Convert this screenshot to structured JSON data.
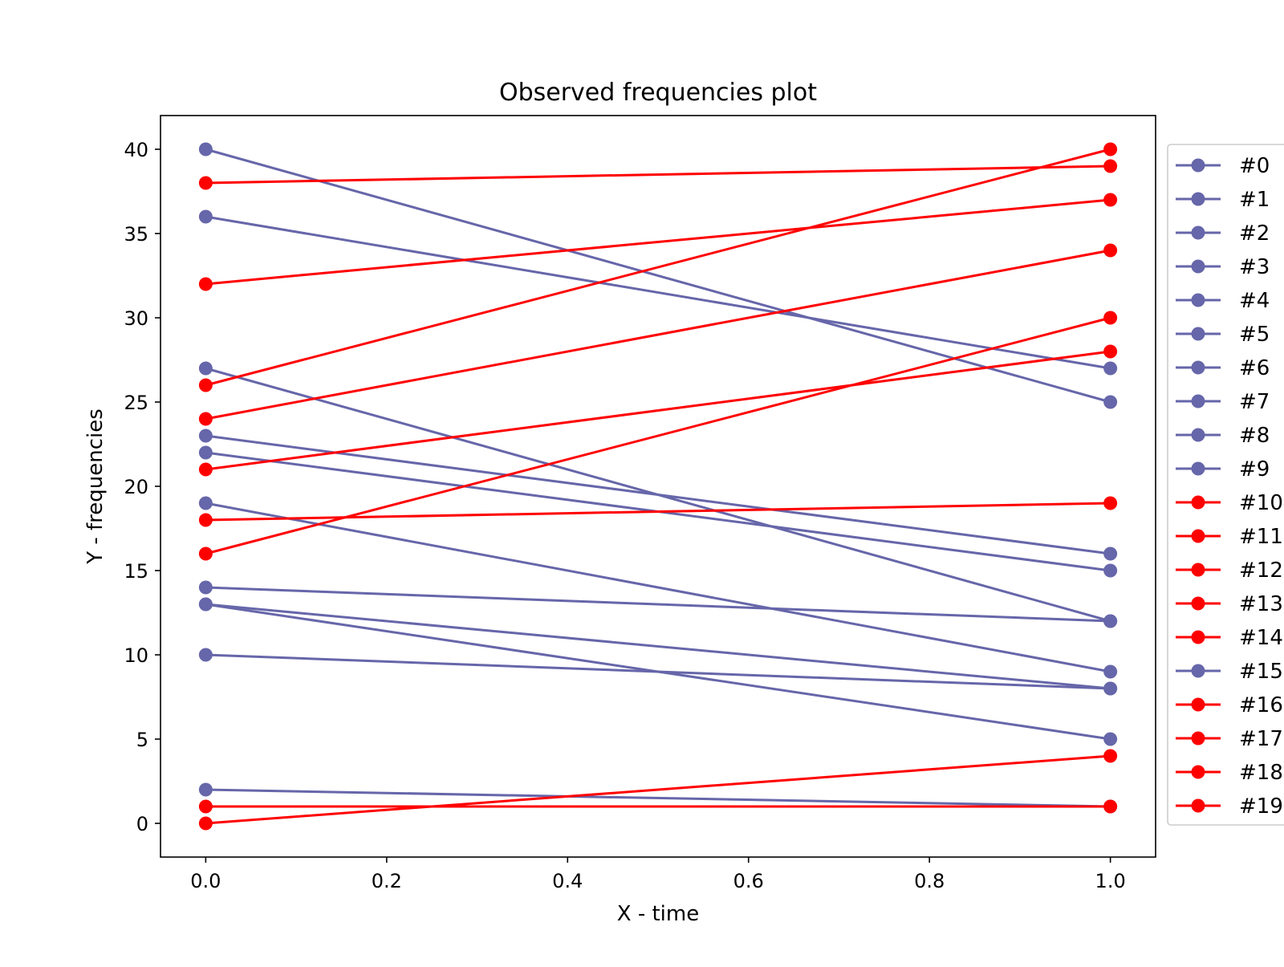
{
  "chart_data": {
    "type": "line",
    "title": "Observed frequencies plot",
    "xlabel": "X - time",
    "ylabel": "Y - frequencies",
    "xlim": [
      -0.05,
      1.05
    ],
    "ylim": [
      -2,
      42
    ],
    "x_ticks": [
      "0.0",
      "0.2",
      "0.4",
      "0.6",
      "0.8",
      "1.0"
    ],
    "y_ticks": [
      "0",
      "5",
      "10",
      "15",
      "20",
      "25",
      "30",
      "35",
      "40"
    ],
    "grid": false,
    "legend_position": "outside-right",
    "markers": true,
    "colors": {
      "blue": "#6666aa",
      "red": "#ff0000"
    },
    "x": [
      0,
      1
    ],
    "series": [
      {
        "name": "#0",
        "color": "#6666aa",
        "values": [
          10,
          8
        ]
      },
      {
        "name": "#1",
        "color": "#6666aa",
        "values": [
          22,
          15
        ]
      },
      {
        "name": "#2",
        "color": "#6666aa",
        "values": [
          13,
          5
        ]
      },
      {
        "name": "#3",
        "color": "#6666aa",
        "values": [
          27,
          12
        ]
      },
      {
        "name": "#4",
        "color": "#6666aa",
        "values": [
          2,
          1
        ]
      },
      {
        "name": "#5",
        "color": "#6666aa",
        "values": [
          19,
          9
        ]
      },
      {
        "name": "#6",
        "color": "#6666aa",
        "values": [
          13,
          8
        ]
      },
      {
        "name": "#7",
        "color": "#6666aa",
        "values": [
          36,
          27
        ]
      },
      {
        "name": "#8",
        "color": "#6666aa",
        "values": [
          23,
          16
        ]
      },
      {
        "name": "#9",
        "color": "#6666aa",
        "values": [
          40,
          25
        ]
      },
      {
        "name": "#10",
        "color": "#ff0000",
        "values": [
          26,
          40
        ]
      },
      {
        "name": "#11",
        "color": "#ff0000",
        "values": [
          38,
          39
        ]
      },
      {
        "name": "#12",
        "color": "#ff0000",
        "values": [
          0,
          4
        ]
      },
      {
        "name": "#13",
        "color": "#ff0000",
        "values": [
          32,
          37
        ]
      },
      {
        "name": "#14",
        "color": "#ff0000",
        "values": [
          24,
          34
        ]
      },
      {
        "name": "#15",
        "color": "#6666aa",
        "values": [
          14,
          12
        ]
      },
      {
        "name": "#16",
        "color": "#ff0000",
        "values": [
          16,
          30
        ]
      },
      {
        "name": "#17",
        "color": "#ff0000",
        "values": [
          21,
          28
        ]
      },
      {
        "name": "#18",
        "color": "#ff0000",
        "values": [
          18,
          19
        ]
      },
      {
        "name": "#19",
        "color": "#ff0000",
        "values": [
          1,
          1
        ]
      }
    ]
  }
}
